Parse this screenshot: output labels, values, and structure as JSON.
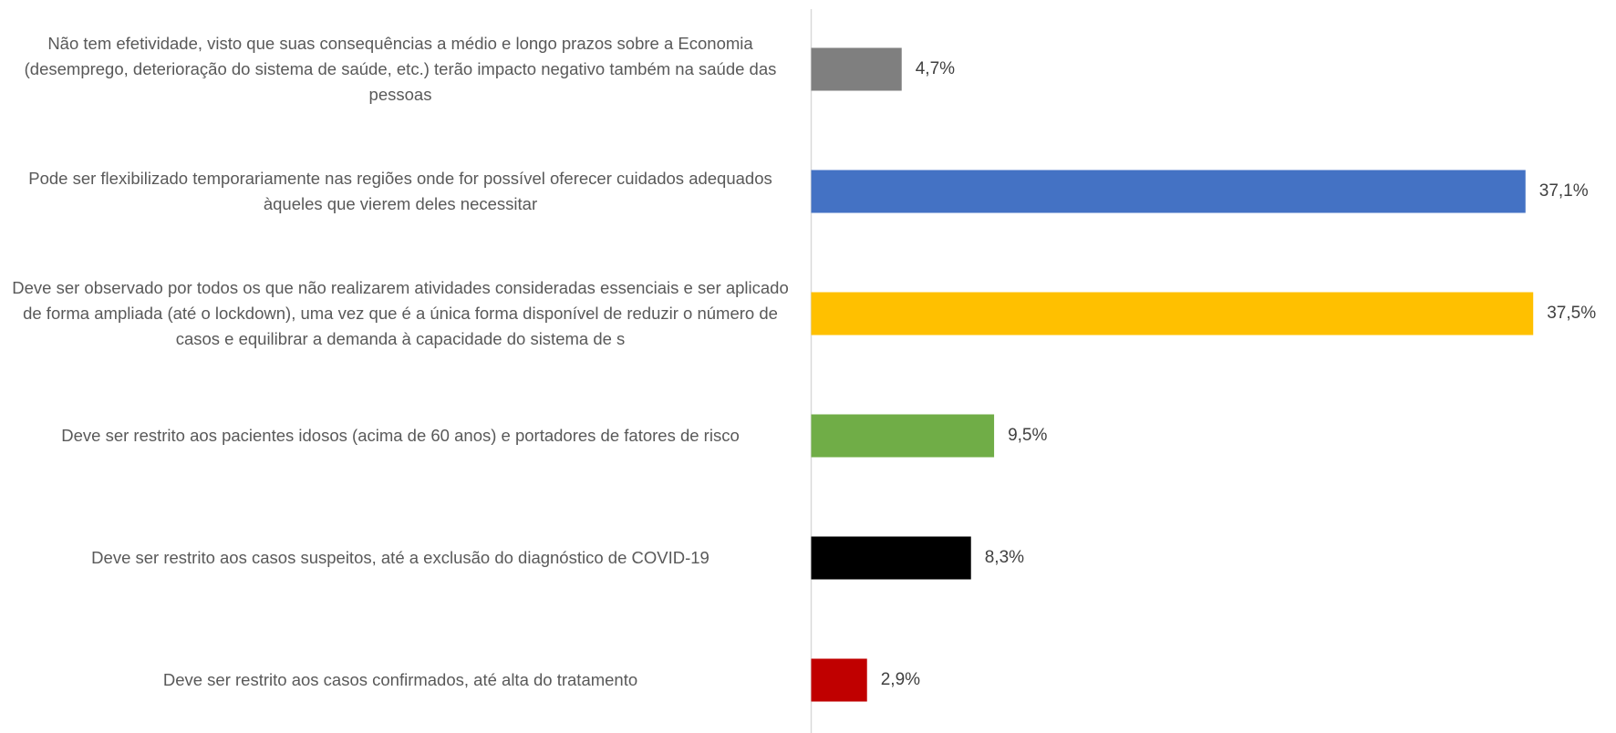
{
  "chart_data": {
    "type": "barh",
    "categories": [
      "Não tem efetividade, visto que suas consequências a médio e longo prazos sobre a Economia (desemprego, deterioração do sistema de saúde, etc.) terão impacto negativo também na saúde das pessoas",
      "Pode ser flexibilizado temporariamente nas regiões onde for possível oferecer cuidados adequados àqueles que vierem deles necessitar",
      "Deve ser observado por todos os que não realizarem atividades consideradas essenciais e ser aplicado de forma ampliada (até o lockdown), uma vez que é a única forma disponível de reduzir o número de casos e equilibrar a demanda à capacidade do sistema de s",
      "Deve ser restrito aos pacientes idosos (acima de 60 anos) e portadores de fatores de risco",
      "Deve ser restrito aos casos suspeitos, até a exclusão do diagnóstico de COVID-19",
      "Deve ser restrito aos casos confirmados, até alta do tratamento"
    ],
    "values": [
      4.7,
      37.1,
      37.5,
      9.5,
      8.3,
      2.9
    ],
    "value_labels": [
      "4,7%",
      "37,1%",
      "37,5%",
      "9,5%",
      "8,3%",
      "2,9%"
    ],
    "colors": [
      "#7f7f7f",
      "#4472c4",
      "#ffc000",
      "#70ad47",
      "#000000",
      "#c00000"
    ],
    "xlim": [
      0,
      40
    ]
  }
}
